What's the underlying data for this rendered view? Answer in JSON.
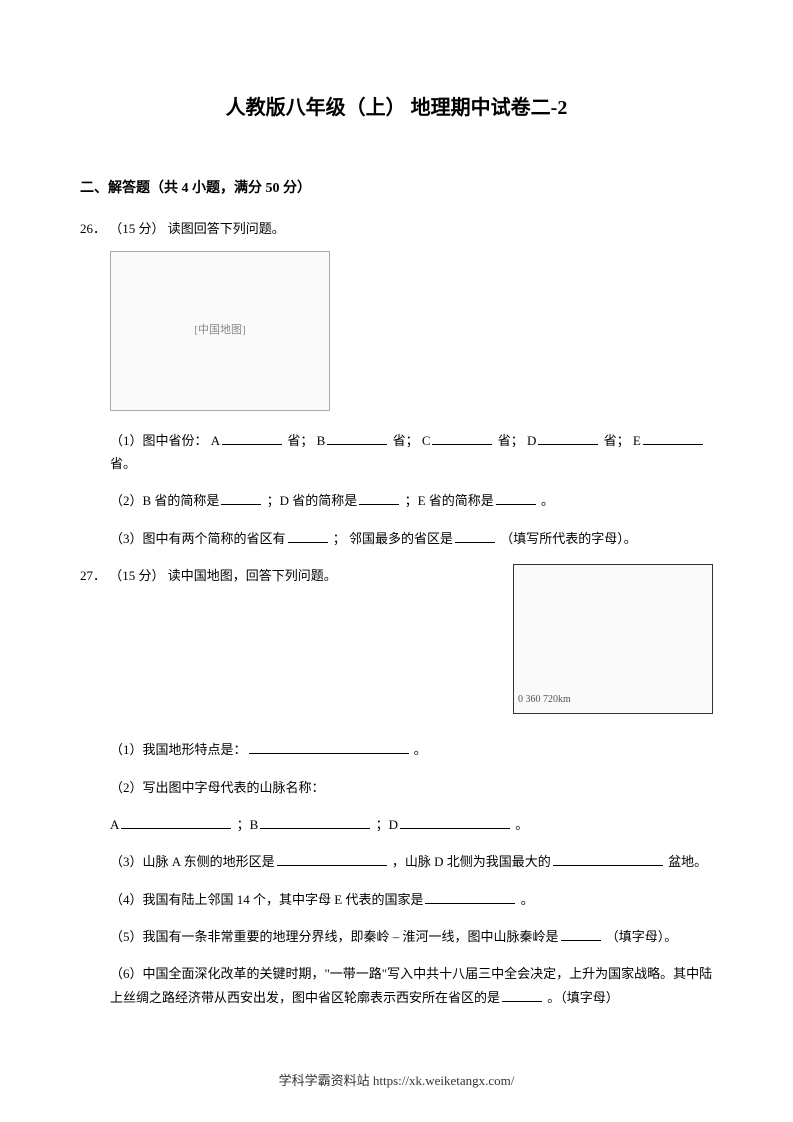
{
  "title": "人教版八年级（上）  地理期中试卷二-2",
  "section_heading": "二、解答题（共 4 小题，满分 50 分）",
  "q26": {
    "number": "26．",
    "points": "（15 分）",
    "stem": "  读图回答下列问题。",
    "map_placeholder": "[中国地图]",
    "sub1": {
      "prefix": "（1）图中省份：  A",
      "unit": "省；  B",
      "unit2": "省；  C",
      "unit3": "省；  D",
      "unit4": "省；  E",
      "unit5": "省。"
    },
    "sub2": {
      "t1": "（2）B 省的简称是",
      "t2": "；D 省的简称是",
      "t3": "；E 省的简称是",
      "t4": "。"
    },
    "sub3": {
      "t1": "（3）图中有两个简称的省区有",
      "t2": "；  邻国最多的省区是",
      "t3": "（填写所代表的字母）。"
    }
  },
  "q27": {
    "number": "27．",
    "points": "（15 分）",
    "stem": "  读中国地图，回答下列问题。",
    "map_scale": "0   360   720km",
    "sub1": {
      "t1": "（1）我国地形特点是：",
      "t2": "。"
    },
    "sub2": {
      "t1": "（2）写出图中字母代表的山脉名称："
    },
    "sub2b": {
      "a": "A",
      "b": "；B",
      "d": "；D",
      "end": "。"
    },
    "sub3": {
      "t1": "（3）山脉 A 东侧的地形区是",
      "t2": "，山脉 D 北侧为我国最大的",
      "t3": "盆地。"
    },
    "sub4": {
      "t1": "（4）我国有陆上邻国 14 个，其中字母 E 代表的国家是",
      "t2": "。"
    },
    "sub5": {
      "t1": "（5）我国有一条非常重要的地理分界线，即秦岭 – 淮河一线，图中山脉秦岭是",
      "t2": "（填字母）。"
    },
    "sub6": {
      "t1": "（6）中国全面深化改革的关键时期，\"一带一路\"写入中共十八届三中全会决定，上升为国家战略。其中陆上丝绸之路经济带从西安出发，图中省区轮廓表示西安所在省区的是",
      "t2": "。（填字母）"
    }
  },
  "footer": "学科学霸资料站 https://xk.weiketangx.com/"
}
